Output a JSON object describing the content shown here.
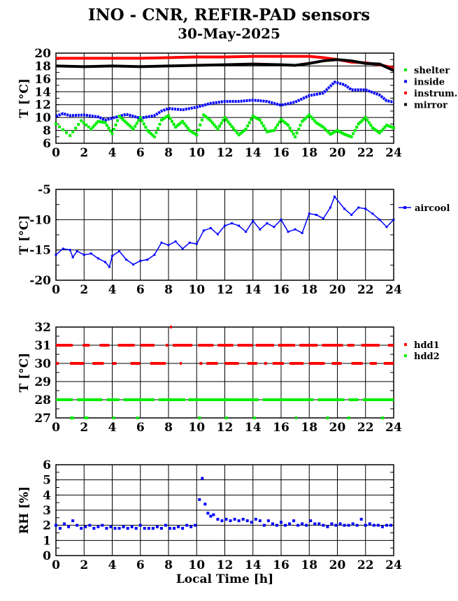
{
  "title": "INO - CNR, REFIR-PAD sensors",
  "subtitle": "30-May-2025",
  "colors": {
    "red": "#ff0000",
    "black": "#000000",
    "blue": "#0000ff",
    "green": "#00ee00",
    "grid": "#000000"
  },
  "chart_data": [
    {
      "type": "scatter",
      "ylabel": "T [°C]",
      "xlim": [
        0,
        24
      ],
      "ylim": [
        6,
        20
      ],
      "xticks": [
        "0",
        "2",
        "4",
        "6",
        "8",
        "10",
        "12",
        "14",
        "16",
        "18",
        "20",
        "22",
        "24"
      ],
      "yticks": [
        "6",
        "8",
        "10",
        "12",
        "14",
        "16",
        "18",
        "20"
      ],
      "legend": [
        "shelter",
        "inside",
        "instrum.",
        "mirror"
      ],
      "series": [
        {
          "name": "instrum.",
          "color": "red",
          "x": [
            0,
            2,
            4,
            6,
            8,
            10,
            12,
            14,
            16,
            18,
            19,
            20,
            21,
            22,
            23,
            24
          ],
          "y": [
            19.2,
            19.2,
            19.2,
            19.2,
            19.3,
            19.4,
            19.4,
            19.5,
            19.5,
            19.5,
            19.3,
            19.0,
            18.6,
            18.5,
            18.2,
            17.7
          ]
        },
        {
          "name": "mirror",
          "color": "black",
          "x": [
            0,
            2,
            4,
            6,
            8,
            10,
            12,
            14,
            16,
            17,
            18,
            19,
            20,
            21,
            22,
            23,
            24
          ],
          "y": [
            18.0,
            17.9,
            18.0,
            17.9,
            18.0,
            18.1,
            18.2,
            18.3,
            18.2,
            18.1,
            18.4,
            18.8,
            19.0,
            18.8,
            18.4,
            18.3,
            17.3
          ]
        },
        {
          "name": "inside",
          "color": "blue",
          "x": [
            0,
            0.5,
            1,
            2,
            3,
            3.5,
            4,
            5,
            6,
            7,
            7.5,
            8,
            9,
            10,
            11,
            12,
            13,
            14,
            15,
            16,
            17,
            18,
            19,
            19.8,
            20.5,
            21,
            22,
            23,
            23.5,
            24
          ],
          "y": [
            10.2,
            10.6,
            10.3,
            10.4,
            10.1,
            9.6,
            9.9,
            10.5,
            9.9,
            10.3,
            11.0,
            11.4,
            11.2,
            11.6,
            12.2,
            12.5,
            12.5,
            12.7,
            12.5,
            11.9,
            12.4,
            13.4,
            13.8,
            15.5,
            15.1,
            14.3,
            14.3,
            13.5,
            12.6,
            12.4
          ]
        },
        {
          "name": "shelter",
          "color": "green",
          "x": [
            0,
            1,
            1.8,
            2.5,
            3,
            3.5,
            4,
            4.5,
            5,
            5.5,
            6,
            6.5,
            7,
            7.5,
            8,
            8.5,
            9,
            9.5,
            10,
            10.5,
            11,
            11.5,
            12,
            12.5,
            13,
            13.5,
            14,
            14.5,
            15,
            15.5,
            16,
            16.5,
            17,
            17.5,
            18,
            18.5,
            19,
            19.5,
            20,
            20.5,
            21,
            21.5,
            22,
            22.5,
            23,
            23.5,
            24
          ],
          "y": [
            9.0,
            7.2,
            9.5,
            8.2,
            9.4,
            9.2,
            7.5,
            10.2,
            9.2,
            8.2,
            10.0,
            8.0,
            7.0,
            9.6,
            10.3,
            8.5,
            9.4,
            8.0,
            7.3,
            10.4,
            9.5,
            8.2,
            10.0,
            8.6,
            7.3,
            8.2,
            10.2,
            9.6,
            7.8,
            8.0,
            9.7,
            8.8,
            7.0,
            9.4,
            10.4,
            9.2,
            8.5,
            7.4,
            8.0,
            7.4,
            7.0,
            9.0,
            10.0,
            8.4,
            7.6,
            8.8,
            8.4
          ]
        }
      ]
    },
    {
      "type": "line",
      "ylabel": "T [°C]",
      "xlim": [
        0,
        24
      ],
      "ylim": [
        -20,
        -5
      ],
      "xticks": [
        "0",
        "2",
        "4",
        "6",
        "8",
        "10",
        "12",
        "14",
        "16",
        "18",
        "20",
        "22",
        "24"
      ],
      "yticks": [
        "-20",
        "-15",
        "-10",
        "-5"
      ],
      "legend": [
        "aircool"
      ],
      "series": [
        {
          "name": "aircool",
          "color": "blue",
          "x": [
            0,
            0.5,
            1,
            1.2,
            1.5,
            2,
            2.5,
            3,
            3.5,
            3.8,
            4,
            4.5,
            5,
            5.5,
            6,
            6.5,
            7,
            7.5,
            8,
            8.5,
            9,
            9.5,
            10,
            10.5,
            11,
            11.5,
            12,
            12.5,
            13,
            13.5,
            14,
            14.5,
            15,
            15.5,
            16,
            16.5,
            17,
            17.5,
            18,
            18.5,
            19,
            19.5,
            19.8,
            20.5,
            21,
            21.5,
            22,
            22.5,
            23,
            23.5,
            24
          ],
          "y": [
            -15.8,
            -14.8,
            -15.0,
            -16.2,
            -15.2,
            -15.8,
            -15.6,
            -16.4,
            -17.0,
            -17.8,
            -16.0,
            -15.2,
            -16.6,
            -17.4,
            -16.8,
            -16.6,
            -15.8,
            -13.8,
            -14.2,
            -13.6,
            -14.8,
            -13.8,
            -14.0,
            -11.8,
            -11.4,
            -12.4,
            -11.0,
            -10.6,
            -11.0,
            -12.0,
            -10.2,
            -11.6,
            -10.6,
            -11.2,
            -10.0,
            -12.0,
            -11.6,
            -12.2,
            -9.0,
            -9.2,
            -9.8,
            -8.0,
            -6.2,
            -8.2,
            -9.2,
            -8.0,
            -8.2,
            -9.0,
            -10.0,
            -11.2,
            -10.0
          ]
        }
      ]
    },
    {
      "type": "scatter",
      "ylabel": "T [°C]",
      "xlim": [
        0,
        24
      ],
      "ylim": [
        27,
        32
      ],
      "xticks": [
        "0",
        "2",
        "4",
        "6",
        "8",
        "10",
        "12",
        "14",
        "16",
        "18",
        "20",
        "22",
        "24"
      ],
      "yticks": [
        "27",
        "28",
        "29",
        "30",
        "31",
        "32"
      ],
      "legend": [
        "hdd1",
        "hdd2"
      ],
      "series": [
        {
          "name": "hdd1",
          "color": "red",
          "segments": [
            {
              "y": 31,
              "ranges": [
                [
                  0,
                  1.2
                ],
                [
                  1.9,
                  2.4
                ],
                [
                  3.1,
                  3.8
                ],
                [
                  4.4,
                  5.6
                ],
                [
                  6.0,
                  7.0
                ],
                [
                  7.8,
                  8.0
                ],
                [
                  8.3,
                  9.7
                ],
                [
                  10.1,
                  11.2
                ],
                [
                  11.5,
                  12.6
                ],
                [
                  12.9,
                  14.0
                ],
                [
                  14.2,
                  15.5
                ],
                [
                  15.8,
                  17.0
                ],
                [
                  17.3,
                  18.6
                ],
                [
                  18.9,
                  20.4
                ],
                [
                  20.7,
                  21.2
                ],
                [
                  21.7,
                  23.0
                ],
                [
                  23.6,
                  24
                ]
              ]
            },
            {
              "y": 30,
              "ranges": [
                [
                  0,
                  0.2
                ],
                [
                  1.0,
                  2.0
                ],
                [
                  2.6,
                  3.4
                ],
                [
                  4.0,
                  4.3
                ],
                [
                  5.3,
                  6.0
                ],
                [
                  6.7,
                  7.8
                ],
                [
                  8.8,
                  8.9
                ],
                [
                  10.2,
                  10.4
                ],
                [
                  10.7,
                  11.5
                ],
                [
                  12.0,
                  13.0
                ],
                [
                  13.6,
                  14.3
                ],
                [
                  14.8,
                  15.0
                ],
                [
                  15.4,
                  16.2
                ],
                [
                  16.6,
                  17.6
                ],
                [
                  18.0,
                  19.1
                ],
                [
                  19.6,
                  20.3
                ],
                [
                  21.0,
                  21.8
                ],
                [
                  22.3,
                  22.8
                ],
                [
                  23.3,
                  24
                ]
              ]
            },
            {
              "y": 32,
              "ranges": [
                [
                  8.1,
                  8.2
                ]
              ]
            }
          ]
        },
        {
          "name": "hdd2",
          "color": "green",
          "segments": [
            {
              "y": 28,
              "ranges": [
                [
                  0,
                  1.2
                ],
                [
                  1.5,
                  3.3
                ],
                [
                  3.6,
                  4.5
                ],
                [
                  4.8,
                  7.0
                ],
                [
                  7.3,
                  9.2
                ],
                [
                  9.4,
                  14.4
                ],
                [
                  14.7,
                  18.3
                ],
                [
                  18.6,
                  20.5
                ],
                [
                  20.8,
                  21.5
                ],
                [
                  21.8,
                  24
                ]
              ]
            },
            {
              "y": 27,
              "ranges": [
                [
                  1.0,
                  1.3
                ],
                [
                  2.0,
                  2.3
                ],
                [
                  4.0,
                  4.2
                ],
                [
                  5.7,
                  5.9
                ],
                [
                  10.1,
                  10.3
                ],
                [
                  12.0,
                  12.2
                ],
                [
                  14.0,
                  14.2
                ],
                [
                  17.0,
                  17.1
                ],
                [
                  19.2,
                  19.4
                ],
                [
                  20.7,
                  20.9
                ],
                [
                  23.1,
                  23.3
                ]
              ]
            }
          ]
        }
      ]
    },
    {
      "type": "scatter",
      "ylabel": "RH [%]",
      "xlabel": "Local Time [h]",
      "xlim": [
        0,
        24
      ],
      "ylim": [
        0,
        6
      ],
      "xticks": [
        "0",
        "2",
        "4",
        "6",
        "8",
        "10",
        "12",
        "14",
        "16",
        "18",
        "20",
        "22",
        "24"
      ],
      "yticks": [
        "0",
        "1",
        "2",
        "3",
        "4",
        "5",
        "6"
      ],
      "series": [
        {
          "name": "",
          "color": "blue",
          "base": 2.0,
          "x": [
            0,
            0.3,
            0.6,
            0.9,
            1.2,
            1.5,
            1.8,
            2.1,
            2.4,
            2.7,
            3.0,
            3.3,
            3.6,
            3.9,
            4.2,
            4.5,
            4.8,
            5.1,
            5.4,
            5.7,
            6.0,
            6.3,
            6.6,
            6.9,
            7.2,
            7.5,
            7.8,
            8.1,
            8.4,
            8.7,
            9.0,
            9.3,
            9.6,
            9.9,
            10.2,
            10.4,
            10.6,
            10.8,
            11.0,
            11.2,
            11.5,
            11.8,
            12.1,
            12.4,
            12.7,
            13.0,
            13.3,
            13.6,
            13.9,
            14.2,
            14.5,
            14.8,
            15.1,
            15.4,
            15.7,
            16.0,
            16.3,
            16.6,
            16.9,
            17.2,
            17.5,
            17.8,
            18.1,
            18.4,
            18.7,
            19.0,
            19.3,
            19.6,
            19.9,
            20.2,
            20.5,
            20.8,
            21.1,
            21.4,
            21.7,
            22.0,
            22.3,
            22.6,
            22.9,
            23.2,
            23.5,
            23.8
          ],
          "y": [
            2.0,
            1.8,
            2.1,
            1.9,
            2.3,
            2.0,
            1.8,
            1.9,
            2.0,
            1.8,
            1.9,
            2.0,
            1.8,
            1.9,
            1.8,
            1.8,
            1.9,
            1.8,
            1.9,
            1.8,
            2.0,
            1.8,
            1.8,
            1.8,
            1.9,
            1.8,
            2.0,
            1.8,
            1.8,
            1.9,
            1.8,
            2.0,
            1.9,
            2.0,
            3.7,
            5.1,
            3.4,
            2.8,
            2.6,
            2.7,
            2.4,
            2.3,
            2.4,
            2.3,
            2.4,
            2.3,
            2.4,
            2.3,
            2.2,
            2.4,
            2.3,
            2.0,
            2.3,
            2.1,
            2.0,
            2.2,
            2.0,
            2.1,
            2.3,
            2.0,
            2.1,
            2.0,
            2.3,
            2.1,
            2.1,
            2.0,
            1.9,
            2.1,
            2.0,
            2.1,
            2.0,
            2.0,
            2.1,
            2.0,
            2.4,
            2.0,
            2.1,
            2.0,
            2.0,
            1.9,
            2.0,
            2.0
          ]
        }
      ]
    }
  ]
}
